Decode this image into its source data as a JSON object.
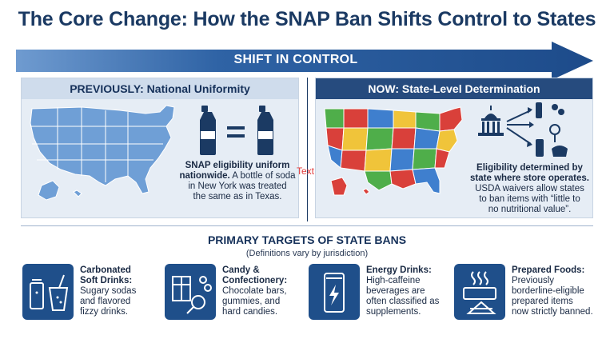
{
  "title": "The Core Change: How the SNAP Ban Shifts Control to States",
  "arrow_label": "SHIFT IN CONTROL",
  "left_panel": {
    "heading": "PREVIOUSLY: National Uniformity",
    "equals": "=",
    "caption_bold_1": "SNAP eligibility uniform",
    "caption_bold_2": "nationwide.",
    "caption_rest_1": " A bottle of soda",
    "caption_line_3": "in New York was treated",
    "caption_line_4": "the same as in Texas."
  },
  "stray_text": "Text",
  "right_panel": {
    "heading": "NOW: State-Level Determination",
    "caption_bold_1": "Eligibility determined by",
    "caption_bold_2": "state where store operates.",
    "caption_line_3": "USDA waivers allow states",
    "caption_line_4": "to ban items with “little to",
    "caption_line_5": "no nutritional value”."
  },
  "targets": {
    "title": "PRIMARY TARGETS OF STATE BANS",
    "subtitle": "(Definitions vary by jurisdiction)",
    "cards": [
      {
        "icon": "soda-cans-icon",
        "bold_1": "Carbonated",
        "bold_2": "Soft Drinks:",
        "l1": "Sugary sodas",
        "l2": "and flavored",
        "l3": "fizzy drinks."
      },
      {
        "icon": "candy-icon",
        "bold_1": "Candy &",
        "bold_2": "Confectionery:",
        "l1": "Chocolate bars,",
        "l2": "gummies, and",
        "l3": "hard candies."
      },
      {
        "icon": "energy-drink-icon",
        "bold_1": "Energy Drinks:",
        "bold_2": "",
        "l1": "High-caffeine",
        "l2": "beverages are",
        "l3": "often classified as",
        "l4": "supplements."
      },
      {
        "icon": "prepared-food-icon",
        "bold_1": "Prepared Foods:",
        "bold_2": "",
        "l1": "Previously",
        "l2": "borderline-eligible",
        "l3": "prepared items",
        "l4": "now strictly banned."
      }
    ]
  },
  "colors": {
    "navy": "#1b3a63",
    "arrow": "#2d5f9e",
    "map_uniform": "#6f9fd6",
    "state_red": "#d9403a",
    "state_green": "#4fae4a",
    "state_yellow": "#f0c43a",
    "state_blue": "#3f7fce"
  }
}
